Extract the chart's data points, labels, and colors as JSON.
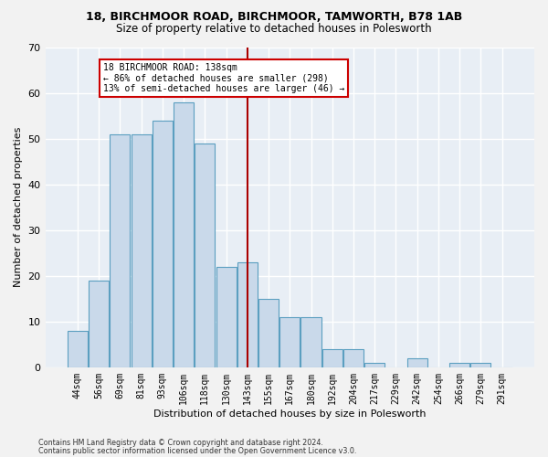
{
  "title1": "18, BIRCHMOOR ROAD, BIRCHMOOR, TAMWORTH, B78 1AB",
  "title2": "Size of property relative to detached houses in Polesworth",
  "xlabel": "Distribution of detached houses by size in Polesworth",
  "ylabel": "Number of detached properties",
  "bar_labels": [
    "44sqm",
    "56sqm",
    "69sqm",
    "81sqm",
    "93sqm",
    "106sqm",
    "118sqm",
    "130sqm",
    "143sqm",
    "155sqm",
    "167sqm",
    "180sqm",
    "192sqm",
    "204sqm",
    "217sqm",
    "229sqm",
    "242sqm",
    "254sqm",
    "266sqm",
    "279sqm",
    "291sqm"
  ],
  "bar_values": [
    8,
    19,
    51,
    51,
    54,
    58,
    49,
    22,
    23,
    15,
    11,
    11,
    4,
    4,
    1,
    0,
    2,
    0,
    1,
    1,
    0
  ],
  "bar_color": "#c9d9ea",
  "bar_edge_color": "#5b9fc0",
  "vline_color": "#aa0000",
  "annotation_box_edge": "#cc0000",
  "ylim": [
    0,
    70
  ],
  "yticks": [
    0,
    10,
    20,
    30,
    40,
    50,
    60,
    70
  ],
  "fig_bg": "#f2f2f2",
  "plot_bg": "#e8eef5",
  "grid_color": "#ffffff",
  "footer1": "Contains HM Land Registry data © Crown copyright and database right 2024.",
  "footer2": "Contains public sector information licensed under the Open Government Licence v3.0."
}
